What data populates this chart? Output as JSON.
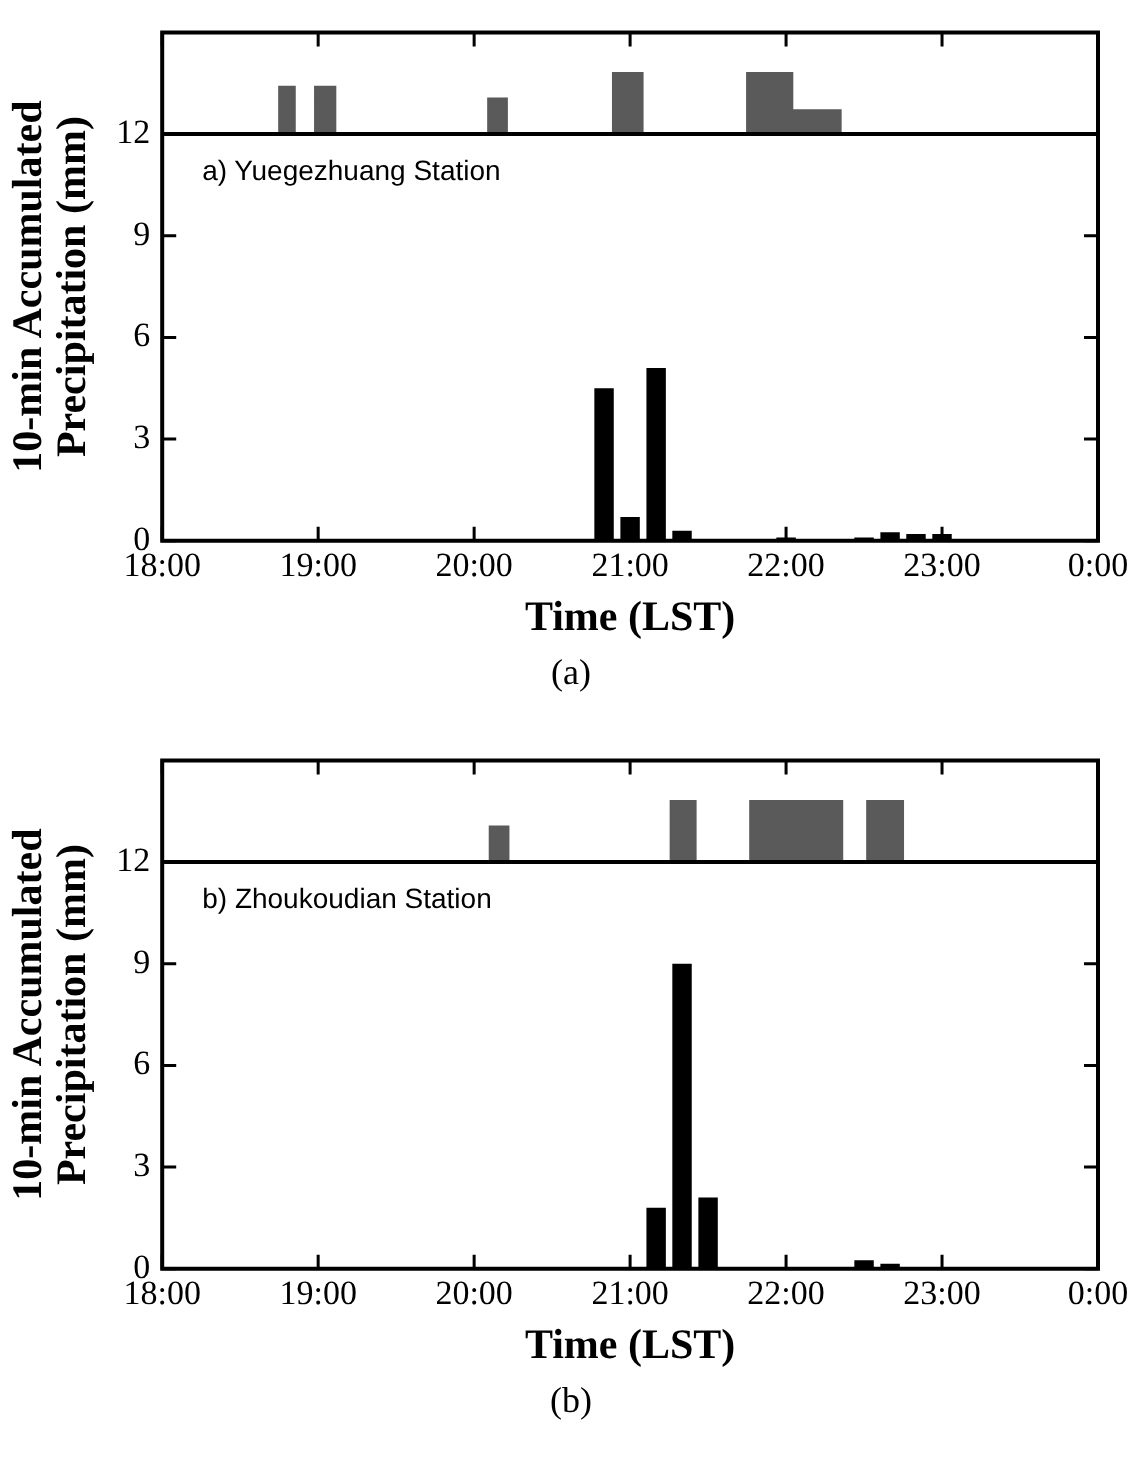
{
  "chart_data": [
    {
      "type": "bar",
      "xlabel": "Time (LST)",
      "ylabel": "10-min Accumulated\nPrecipitation (mm)",
      "annotations": [
        "a) Yuegezhuang Station",
        "(a)"
      ],
      "xlim": [
        18,
        24
      ],
      "xticks": [
        {
          "value": 18,
          "label": "18:00"
        },
        {
          "value": 19,
          "label": "19:00"
        },
        {
          "value": 20,
          "label": "20:00"
        },
        {
          "value": 21,
          "label": "21:00"
        },
        {
          "value": 22,
          "label": "22:00"
        },
        {
          "value": 23,
          "label": "23:00"
        },
        {
          "value": 24,
          "label": "0:00"
        }
      ],
      "ylim": [
        0,
        15
      ],
      "yticks": [
        0,
        3,
        6,
        9,
        12
      ],
      "ref_lines": [
        {
          "axis": "y",
          "value": 12,
          "color": "#000000"
        }
      ],
      "series": [
        {
          "color": "#000000",
          "x": [
            20.833,
            21,
            21.167,
            21.333,
            21.5,
            21.833,
            22,
            22.5,
            22.667,
            22.833,
            23
          ],
          "values": [
            4.5,
            0.7,
            5.1,
            0.3,
            0.05,
            0.05,
            0.1,
            0.1,
            0.25,
            0.2,
            0.2
          ]
        },
        {
          "type": "area",
          "color": "#5a5a5a",
          "x": [
            18,
            18.75,
            18.75,
            18.85,
            18.85,
            18.98,
            18.98,
            19.11,
            19.11,
            20.09,
            20.09,
            20.21,
            20.21,
            20.89,
            20.89,
            21.08,
            21.08,
            21.75,
            21.75,
            22.04,
            22.04,
            22.35,
            22.35,
            24
          ],
          "values": [
            12,
            12,
            13.4,
            13.4,
            12,
            12,
            13.4,
            13.4,
            12,
            12,
            13.05,
            13.05,
            12,
            12,
            13.8,
            13.8,
            12,
            12,
            13.8,
            13.8,
            12.7,
            12.7,
            12,
            12
          ]
        }
      ]
    },
    {
      "type": "bar",
      "xlabel": "Time (LST)",
      "ylabel": "10-min Accumulated\nPrecipitation (mm)",
      "annotations": [
        "b) Zhoukoudian Station",
        "(b)"
      ],
      "xlim": [
        18,
        24
      ],
      "xticks": [
        {
          "value": 18,
          "label": "18:00"
        },
        {
          "value": 19,
          "label": "19:00"
        },
        {
          "value": 20,
          "label": "20:00"
        },
        {
          "value": 21,
          "label": "21:00"
        },
        {
          "value": 22,
          "label": "22:00"
        },
        {
          "value": 23,
          "label": "23:00"
        },
        {
          "value": 24,
          "label": "0:00"
        }
      ],
      "ylim": [
        0,
        15
      ],
      "yticks": [
        0,
        3,
        6,
        9,
        12
      ],
      "ref_lines": [
        {
          "axis": "y",
          "value": 12,
          "color": "#000000"
        }
      ],
      "series": [
        {
          "color": "#000000",
          "x": [
            21.167,
            21.333,
            21.5,
            22.333,
            22.5,
            22.667
          ],
          "values": [
            1.8,
            9,
            2.1,
            0.05,
            0.25,
            0.15
          ]
        },
        {
          "type": "area",
          "color": "#5a5a5a",
          "x": [
            18,
            20.1,
            20.1,
            20.22,
            20.22,
            21.26,
            21.26,
            21.42,
            21.42,
            21.77,
            21.77,
            22.36,
            22.36,
            22.52,
            22.52,
            22.75,
            22.75,
            24
          ],
          "values": [
            12,
            12,
            13.05,
            13.05,
            12,
            12,
            13.8,
            13.8,
            12,
            12,
            13.8,
            13.8,
            12,
            12,
            13.8,
            13.8,
            12,
            12
          ]
        }
      ]
    }
  ]
}
